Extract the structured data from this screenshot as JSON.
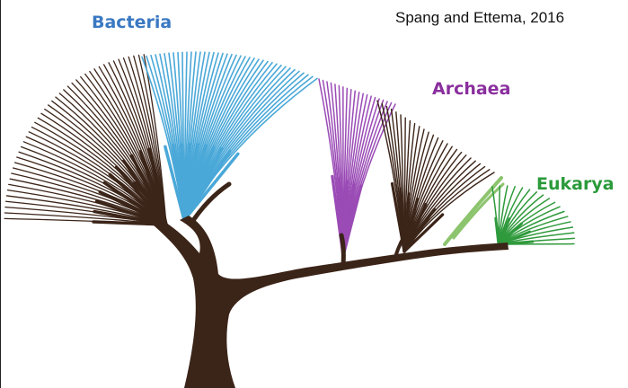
{
  "citation": "Spang and Ettema, 2016",
  "groups": {
    "bacteria": {
      "label": "Bacteria",
      "color": "#3a78c2"
    },
    "archaea": {
      "label": "Archaea",
      "color": "#8a2f9e"
    },
    "eukarya": {
      "label": "Eukarya",
      "color": "#2a9a3a"
    }
  },
  "colors": {
    "trunk": "#3b2418",
    "bacteria_branches": "#4aa8d8",
    "archaea_branches": "#9a4bb5",
    "eukarya_branches": "#2f9a3c",
    "eukarya_stem": "#8cc46e"
  }
}
